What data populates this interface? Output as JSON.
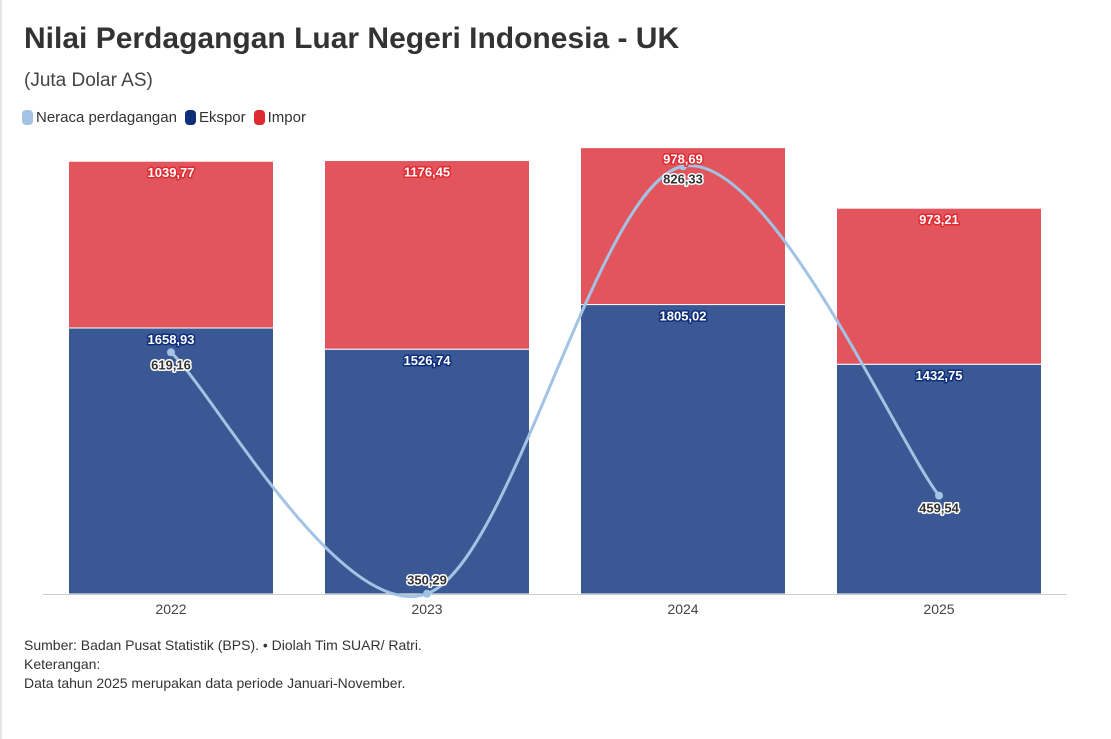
{
  "title": "Nilai Perdagangan Luar Negeri Indonesia - UK",
  "subtitle": "(Juta Dolar AS)",
  "colors": {
    "neraca": "#a2c3e3",
    "ekspor": "#0e2e7a",
    "impor": "#e02a32",
    "ekspor_bar": "#3a5893",
    "impor_bar": "#e3555c"
  },
  "chart_data": {
    "type": "bar",
    "stacked": true,
    "categories": [
      "2022",
      "2023",
      "2024",
      "2025"
    ],
    "series": [
      {
        "name": "Ekspor",
        "type": "bar",
        "values": [
          1658.93,
          1526.74,
          1805.02,
          1432.75
        ],
        "labels": [
          "1658,93",
          "1526,74",
          "1805,02",
          "1432,75"
        ]
      },
      {
        "name": "Impor",
        "type": "bar",
        "values": [
          1039.77,
          1176.45,
          978.69,
          973.21
        ],
        "labels": [
          "1039,77",
          "1176,45",
          "978,69",
          "973,21"
        ]
      },
      {
        "name": "Neraca perdagangan",
        "type": "line",
        "values": [
          619.16,
          350.29,
          826.33,
          459.54
        ],
        "labels": [
          "619,16",
          "350,29",
          "826,33",
          "459,54"
        ]
      }
    ],
    "ylim": [
      0,
      2800
    ],
    "line_ylim": [
      350,
      850
    ],
    "legend_position": "top-left",
    "grid": false
  },
  "footer": {
    "source": "Sumber: Badan Pusat Statistik (BPS). • Diolah Tim SUAR/ Ratri.",
    "note_label": "Keterangan:",
    "note": "Data tahun 2025 merupakan data periode Januari-November."
  }
}
